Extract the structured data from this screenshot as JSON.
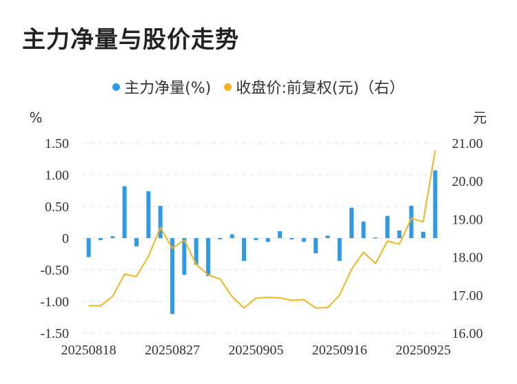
{
  "title": "主力净量与股价走势",
  "legend": [
    {
      "label": "主力净量(%)",
      "color": "#2f9be6"
    },
    {
      "label": "收盘价:前复权(元)（右）",
      "color": "#f2b51d"
    }
  ],
  "chart_data": {
    "type": "bar+line",
    "left_unit": "%",
    "right_unit": "元",
    "y_left_ticks": [
      "1.50",
      "1.00",
      "0.50",
      "0",
      "-0.50",
      "-1.00",
      "-1.50"
    ],
    "y_right_ticks": [
      "21.00",
      "20.00",
      "19.00",
      "18.00",
      "17.00",
      "16.00"
    ],
    "ylim_left": [
      -1.5,
      1.5
    ],
    "ylim_right": [
      16.0,
      21.0
    ],
    "x_tick_labels": [
      "20250818",
      "20250827",
      "20250905",
      "20250916",
      "20250925"
    ],
    "x_tick_indices": [
      0,
      7,
      14,
      21,
      28
    ],
    "grid": true,
    "series": [
      {
        "name": "主力净量(%)",
        "type": "bar",
        "color": "#2f9be6",
        "values": [
          -0.3,
          -0.03,
          0.03,
          0.82,
          -0.13,
          0.74,
          0.51,
          -1.2,
          -0.58,
          -0.42,
          -0.6,
          -0.02,
          0.06,
          -0.36,
          -0.03,
          -0.06,
          0.11,
          -0.02,
          -0.06,
          -0.24,
          0.04,
          -0.36,
          0.48,
          0.26,
          0.01,
          0.35,
          0.12,
          0.51,
          0.1,
          1.07
        ]
      },
      {
        "name": "收盘价:前复权(元)（右）",
        "type": "line",
        "color": "#f2b51d",
        "values": [
          16.72,
          16.72,
          16.97,
          17.55,
          17.49,
          18.02,
          18.78,
          18.23,
          18.45,
          17.81,
          17.53,
          17.42,
          16.96,
          16.66,
          16.92,
          16.94,
          16.93,
          16.86,
          16.88,
          16.66,
          16.67,
          17.0,
          17.68,
          18.13,
          17.83,
          18.42,
          18.34,
          19.02,
          18.93,
          20.81
        ]
      }
    ]
  }
}
